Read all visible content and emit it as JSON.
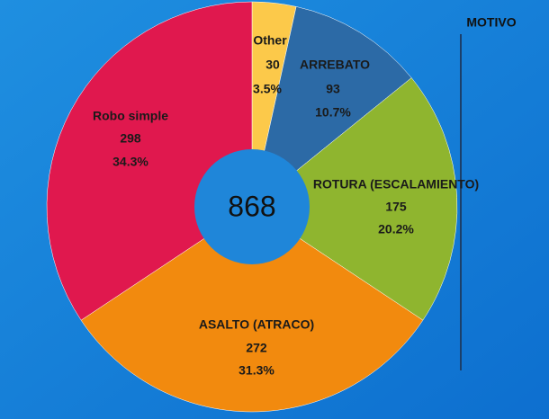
{
  "chart_data": {
    "type": "donut",
    "legend_title": "MOTIVO",
    "total": 868,
    "categories": [
      "Other",
      "ARREBATO",
      "ROTURA (ESCALAMIENTO)",
      "ASALTO (ATRACO)",
      "Robo simple"
    ],
    "values": [
      30,
      93,
      175,
      272,
      298
    ],
    "percent_labels": [
      "3.5%",
      "10.7%",
      "20.2%",
      "31.3%",
      "34.3%"
    ],
    "colors": [
      "#fcc94a",
      "#2c6aa6",
      "#8fb52f",
      "#f28a0e",
      "#e0184e"
    ]
  }
}
